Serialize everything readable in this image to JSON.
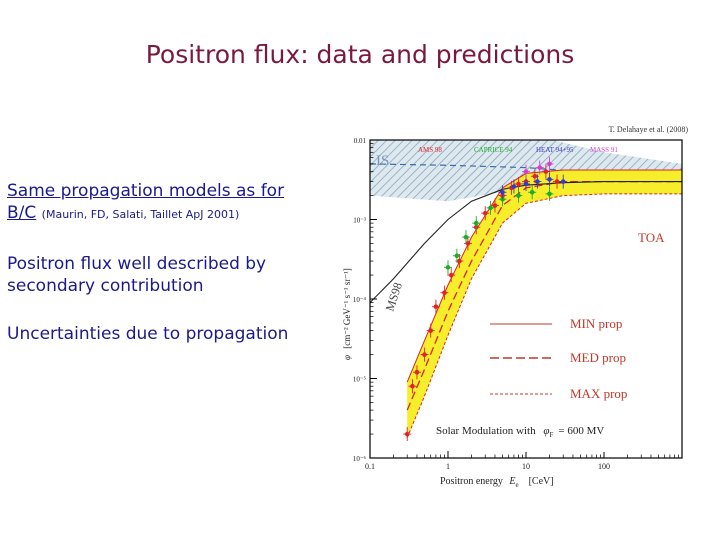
{
  "slide": {
    "title": "Positron flux: data and predictions",
    "bullet1_line1": "Same propagation models as for",
    "bullet1_bc": "B/C",
    "bullet1_ref": "(Maurin, FD, Salati, Taillet ApJ 2001)",
    "bullet2": "Positron flux well described by secondary contribution",
    "bullet3": "Uncertainties due to propagation"
  },
  "chart_data": {
    "type": "scatter",
    "credit": "T. Delahaye et al. (2008)",
    "xlabel_prefix": "Positron energy",
    "xlabel_sym": "E",
    "xlabel_sub": "e",
    "xlabel_unit": "[CeV]",
    "ylabel": "φ",
    "ylabel_unit": "[cm⁻² GeV⁻¹ s⁻¹ sr⁻¹]",
    "x_ticks": [
      "0.1",
      "1",
      "10",
      "100"
    ],
    "y_ticks": [
      "0.01",
      "10⁻³",
      "10⁻⁴",
      "10⁻⁵",
      "10⁻⁶"
    ],
    "xlim": [
      0.1,
      1000
    ],
    "ylim": [
      1e-06,
      0.01
    ],
    "x_scale": "log",
    "y_scale": "log",
    "experiments": [
      "AMS 98",
      "CAPRICE 94",
      "HEAT 94+95",
      "MASS 91"
    ],
    "experiment_colors": [
      "#e0232a",
      "#1faa2a",
      "#3a3ac8",
      "#d040d0"
    ],
    "region_labels": {
      "is": "IS",
      "toa": "TOA",
      "ms98": "MS98"
    },
    "legend": {
      "min": "MIN  prop",
      "med": "MED  prop",
      "max": "MAX  prop",
      "solar_prefix": "Solar Modulation with",
      "solar_sym": "φ",
      "solar_sub": "F",
      "solar_value": "= 600 MV"
    },
    "toa_band_x": [
      0.3,
      0.5,
      1,
      2,
      5,
      10,
      30,
      100,
      1000
    ],
    "toa_band_low": [
      1.8e-06,
      6e-06,
      3.5e-05,
      0.00018,
      0.0009,
      0.0016,
      0.002,
      0.0021,
      0.0021
    ],
    "toa_band_high": [
      9e-06,
      3e-05,
      0.00015,
      0.0006,
      0.0025,
      0.0038,
      0.0042,
      0.0042,
      0.0042
    ],
    "med_curve": [
      4e-06,
      1.3e-05,
      7e-05,
      0.0003,
      0.0015,
      0.0025,
      0.003,
      0.003,
      0.003
    ],
    "is_band_x": [
      0.1,
      1,
      10,
      100,
      1000
    ],
    "is_band_low": [
      0.002,
      0.0017,
      0.0025,
      0.003,
      0.003
    ],
    "is_band_high": [
      0.03,
      0.02,
      0.012,
      0.007,
      0.005
    ],
    "is_median": [
      0.005,
      0.0048,
      0.0045,
      0.0038,
      0.0035
    ],
    "ms98_x": [
      0.1,
      0.2,
      0.5,
      1,
      2,
      5,
      10,
      30,
      100,
      1000
    ],
    "ms98_y": [
      9e-05,
      0.00018,
      0.0005,
      0.001,
      0.0017,
      0.0024,
      0.0027,
      0.0029,
      0.003,
      0.003
    ],
    "points": [
      {
        "x": 0.3,
        "y": 2e-06,
        "s": 0
      },
      {
        "x": 0.35,
        "y": 8e-06,
        "s": 0
      },
      {
        "x": 0.4,
        "y": 1.2e-05,
        "s": 0
      },
      {
        "x": 0.5,
        "y": 2e-05,
        "s": 0
      },
      {
        "x": 0.6,
        "y": 4e-05,
        "s": 0
      },
      {
        "x": 0.7,
        "y": 8e-05,
        "s": 0
      },
      {
        "x": 0.9,
        "y": 0.00012,
        "s": 0
      },
      {
        "x": 1.1,
        "y": 0.0002,
        "s": 0
      },
      {
        "x": 1.4,
        "y": 0.0003,
        "s": 0
      },
      {
        "x": 1.8,
        "y": 0.0005,
        "s": 0
      },
      {
        "x": 2.3,
        "y": 0.0008,
        "s": 0
      },
      {
        "x": 3,
        "y": 0.0012,
        "s": 0
      },
      {
        "x": 4,
        "y": 0.0015,
        "s": 0
      },
      {
        "x": 5,
        "y": 0.002,
        "s": 0
      },
      {
        "x": 6.5,
        "y": 0.0025,
        "s": 0
      },
      {
        "x": 8,
        "y": 0.0028,
        "s": 0
      },
      {
        "x": 10,
        "y": 0.003,
        "s": 0
      },
      {
        "x": 13,
        "y": 0.0035,
        "s": 0
      },
      {
        "x": 18,
        "y": 0.004,
        "s": 0
      },
      {
        "x": 25,
        "y": 0.003,
        "s": 0
      },
      {
        "x": 1,
        "y": 0.00025,
        "s": 1
      },
      {
        "x": 1.3,
        "y": 0.00035,
        "s": 1
      },
      {
        "x": 1.7,
        "y": 0.0006,
        "s": 1
      },
      {
        "x": 2.3,
        "y": 0.0009,
        "s": 1
      },
      {
        "x": 3.5,
        "y": 0.0014,
        "s": 1
      },
      {
        "x": 5,
        "y": 0.0018,
        "s": 1
      },
      {
        "x": 8,
        "y": 0.002,
        "s": 1
      },
      {
        "x": 12,
        "y": 0.0022,
        "s": 1
      },
      {
        "x": 20,
        "y": 0.0021,
        "s": 1
      },
      {
        "x": 5,
        "y": 0.0022,
        "s": 2
      },
      {
        "x": 7,
        "y": 0.0026,
        "s": 2
      },
      {
        "x": 10,
        "y": 0.0028,
        "s": 2
      },
      {
        "x": 14,
        "y": 0.003,
        "s": 2
      },
      {
        "x": 20,
        "y": 0.0032,
        "s": 2
      },
      {
        "x": 30,
        "y": 0.003,
        "s": 2
      },
      {
        "x": 10,
        "y": 0.004,
        "s": 3
      },
      {
        "x": 15,
        "y": 0.0045,
        "s": 3
      },
      {
        "x": 20,
        "y": 0.005,
        "s": 3
      }
    ],
    "grid": false,
    "legend_placement": "bottom-right"
  }
}
